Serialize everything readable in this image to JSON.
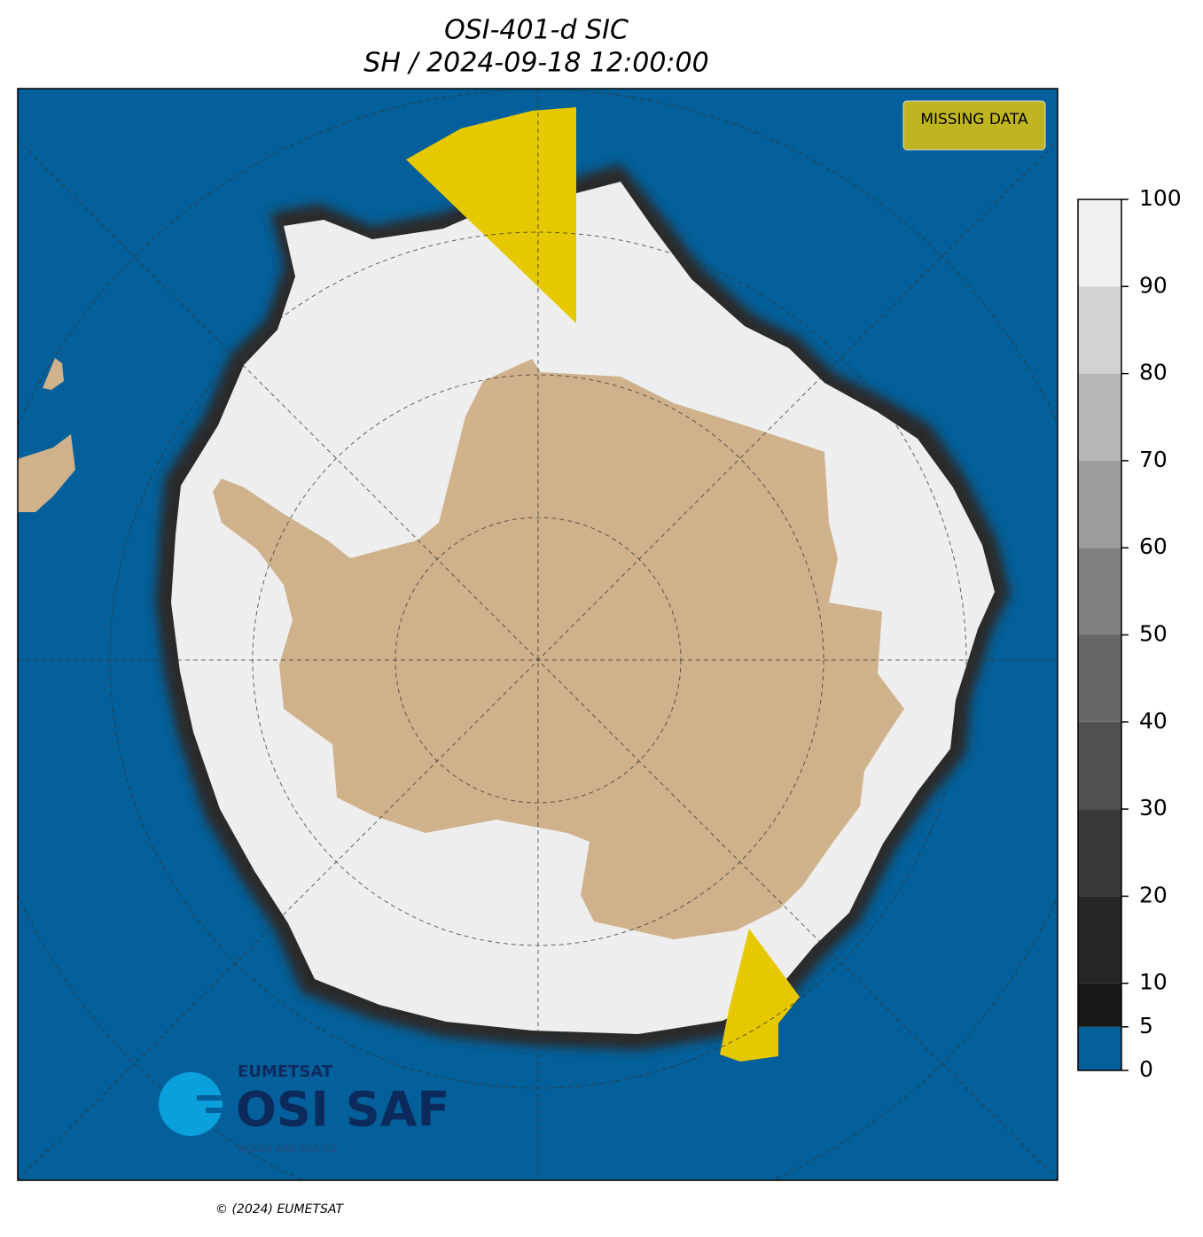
{
  "title": {
    "line1": "OSI-401-d SIC",
    "line2": "SH / 2024-09-18 12:00:00"
  },
  "legend": {
    "missing_data": "MISSING DATA"
  },
  "colorbar": {
    "ticks": [
      0,
      5,
      10,
      20,
      30,
      40,
      50,
      60,
      70,
      80,
      90,
      100
    ],
    "colors": [
      "#04609a",
      "#181818",
      "#252525",
      "#3a3a3a",
      "#505050",
      "#676767",
      "#808080",
      "#9c9c9c",
      "#b6b6b6",
      "#d2d2d2",
      "#efefef"
    ]
  },
  "logo": {
    "org": "EUMETSAT",
    "name": "OSI SAF",
    "tagline": "OCEAN AND SEA ICE"
  },
  "footer": "© (2024) EUMETSAT"
}
